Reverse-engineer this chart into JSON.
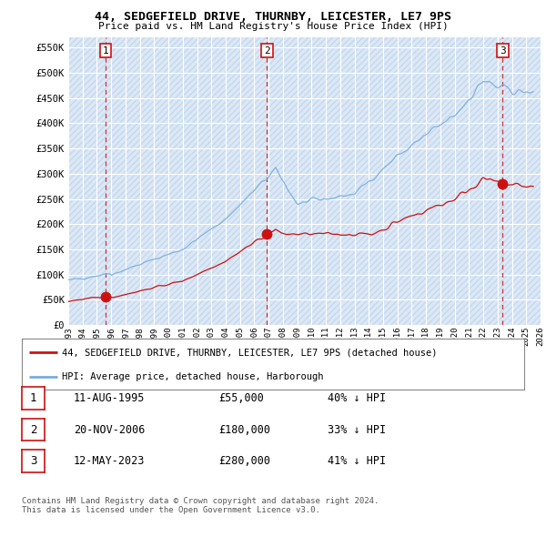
{
  "title": "44, SEDGEFIELD DRIVE, THURNBY, LEICESTER, LE7 9PS",
  "subtitle": "Price paid vs. HM Land Registry's House Price Index (HPI)",
  "ylim": [
    0,
    570000
  ],
  "yticks": [
    0,
    50000,
    100000,
    150000,
    200000,
    250000,
    300000,
    350000,
    400000,
    450000,
    500000,
    550000
  ],
  "ytick_labels": [
    "£0",
    "£50K",
    "£100K",
    "£150K",
    "£200K",
    "£250K",
    "£300K",
    "£350K",
    "£400K",
    "£450K",
    "£500K",
    "£550K"
  ],
  "background_color": "#ffffff",
  "plot_bg_color": "#dce8f5",
  "hatch_color": "#c5d8ee",
  "grid_color": "#ffffff",
  "hpi_color": "#7aadda",
  "price_color": "#cc1111",
  "dashed_line_color": "#cc1111",
  "sales": [
    {
      "date_num": 1995.61,
      "price": 55000,
      "label": "1"
    },
    {
      "date_num": 2006.89,
      "price": 180000,
      "label": "2"
    },
    {
      "date_num": 2023.36,
      "price": 280000,
      "label": "3"
    }
  ],
  "legend_label_red": "44, SEDGEFIELD DRIVE, THURNBY, LEICESTER, LE7 9PS (detached house)",
  "legend_label_blue": "HPI: Average price, detached house, Harborough",
  "table_rows": [
    {
      "num": "1",
      "date": "11-AUG-1995",
      "price": "£55,000",
      "hpi": "40% ↓ HPI"
    },
    {
      "num": "2",
      "date": "20-NOV-2006",
      "price": "£180,000",
      "hpi": "33% ↓ HPI"
    },
    {
      "num": "3",
      "date": "12-MAY-2023",
      "price": "£280,000",
      "hpi": "41% ↓ HPI"
    }
  ],
  "footnote1": "Contains HM Land Registry data © Crown copyright and database right 2024.",
  "footnote2": "This data is licensed under the Open Government Licence v3.0.",
  "xmin": 1993,
  "xmax": 2026
}
